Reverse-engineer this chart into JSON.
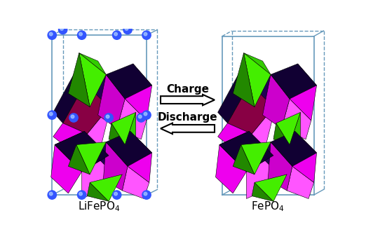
{
  "label_left": "LiFePO$_4$",
  "label_right": "FePO$_4$",
  "charge_text": "Charge",
  "discharge_text": "Discharge",
  "bg_color": "#ffffff",
  "text_color": "#000000",
  "mg": "#ee00ee",
  "mg_dark": "#880044",
  "mg_mid": "#cc00cc",
  "mg_light": "#ff55ff",
  "gr": "#44ee00",
  "gr_dark": "#228800",
  "gr_mid": "#33cc00",
  "dk": "#110033",
  "dk2": "#220055",
  "li_color": "#3355ff",
  "box_color": "#6699bb",
  "label_fontsize": 11,
  "arrow_text_fontsize": 11
}
